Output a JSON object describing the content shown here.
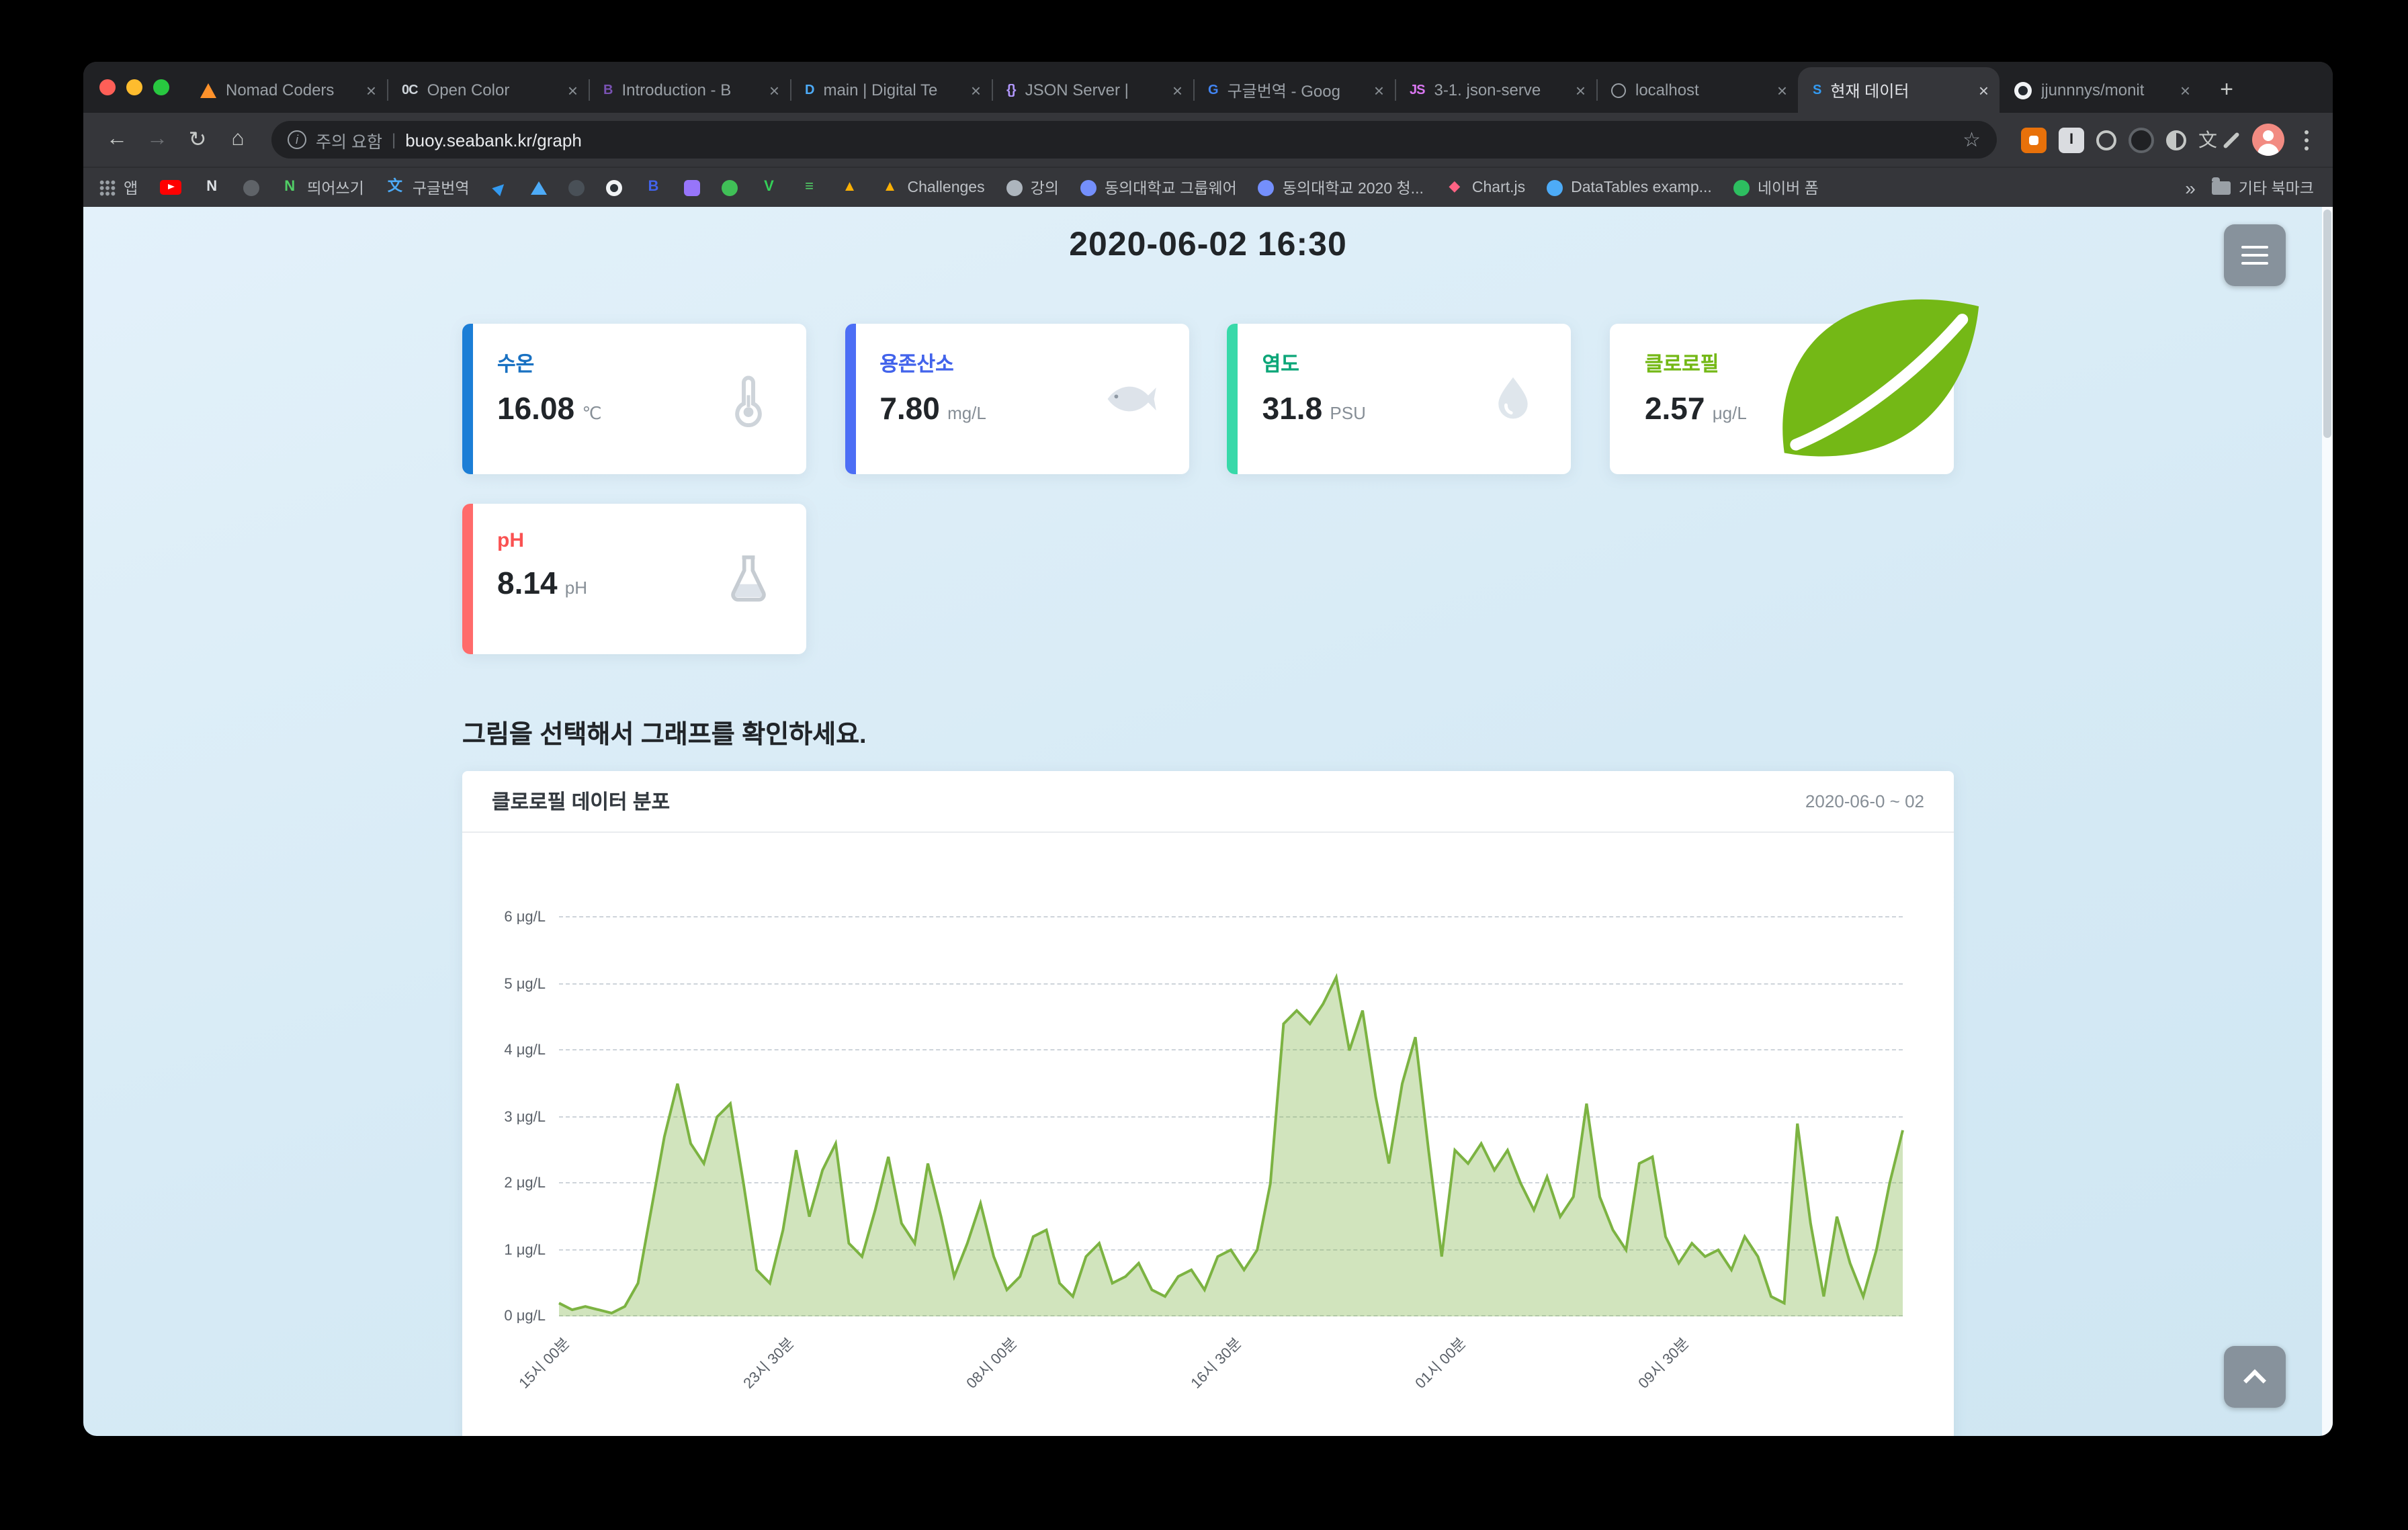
{
  "glyphs": {
    "back": "←",
    "forward": "→",
    "reload": "↻",
    "home": "⌂",
    "star": "☆",
    "plus": "+",
    "close": "×",
    "overflow": "»",
    "divider": "|",
    "info": "i",
    "translate": "文",
    "ext_badge": "I"
  },
  "window": {
    "tabs": [
      {
        "title": "Nomad Coders",
        "fav": {
          "kind": "tri",
          "color": "#ff922b"
        }
      },
      {
        "title": "Open Color",
        "fav": {
          "kind": "letter",
          "text": "0C",
          "color": "#ced4da"
        }
      },
      {
        "title": "Introduction - B",
        "fav": {
          "kind": "letter",
          "text": "B",
          "color": "#7952b3"
        }
      },
      {
        "title": "main | Digital Te",
        "fav": {
          "kind": "letter",
          "text": "D",
          "color": "#4dabf7"
        }
      },
      {
        "title": "JSON Server |",
        "fav": {
          "kind": "letter",
          "text": "{}",
          "color": "#b197fc"
        }
      },
      {
        "title": "구글번역 - Goog",
        "fav": {
          "kind": "letter",
          "text": "G",
          "color": "#4285f4"
        }
      },
      {
        "title": "3-1. json-serve",
        "fav": {
          "kind": "letter",
          "text": "JS",
          "color": "#da77f2"
        }
      },
      {
        "title": "localhost",
        "fav": {
          "kind": "globe",
          "color": "#9aa0a6"
        }
      },
      {
        "title": "현재 데이터",
        "fav": {
          "kind": "letter",
          "text": "S",
          "color": "#339af0"
        },
        "active": true
      },
      {
        "title": "jjunnnys/monit",
        "fav": {
          "kind": "gh",
          "color": "#f1f3f5"
        }
      }
    ],
    "address": {
      "warning": "주의 요함",
      "url": "buoy.seabank.kr/graph"
    },
    "bookmarks": [
      {
        "name": "apps-grid-icon",
        "kind": "grid",
        "color": "#9aa0a6",
        "label": "앱"
      },
      {
        "name": "youtube-icon",
        "kind": "play",
        "color": "#ff0000",
        "label": ""
      },
      {
        "name": "letter-n-dark-icon",
        "kind": "glyph",
        "text": "N",
        "color": "#dee2e6",
        "label": ""
      },
      {
        "name": "dark-circle-icon",
        "kind": "dot",
        "color": "#5f6368",
        "label": ""
      },
      {
        "name": "naver-n-icon",
        "kind": "glyph",
        "text": "N",
        "color": "#51cf66",
        "label": "띄어쓰기"
      },
      {
        "name": "translate-icon",
        "kind": "glyph",
        "text": "文",
        "color": "#4dabf7",
        "label": "구글번역"
      },
      {
        "name": "send-icon",
        "kind": "glyph",
        "text": "▶",
        "color": "#339af0",
        "label": ""
      },
      {
        "name": "triangle-icon",
        "kind": "tri",
        "color": "#4dabf7",
        "label": ""
      },
      {
        "name": "dark-circle-icon",
        "kind": "dot",
        "color": "#495057",
        "label": ""
      },
      {
        "name": "github-icon",
        "kind": "gh",
        "color": "#f1f3f5",
        "label": ""
      },
      {
        "name": "letter-b-icon",
        "kind": "glyph",
        "text": "B",
        "color": "#4263eb",
        "label": ""
      },
      {
        "name": "purple-square-icon",
        "kind": "sq",
        "color": "#9775fa",
        "label": ""
      },
      {
        "name": "green-circle-icon",
        "kind": "dot",
        "color": "#40c057",
        "label": ""
      },
      {
        "name": "letter-v-icon",
        "kind": "glyph",
        "text": "V",
        "color": "#34d058",
        "label": ""
      },
      {
        "name": "list-lines-icon",
        "kind": "glyph",
        "text": "≡",
        "color": "#51cf66",
        "label": ""
      },
      {
        "name": "warning-icon",
        "kind": "glyph",
        "text": "▲",
        "color": "#fab005",
        "label": ""
      },
      {
        "name": "warning-icon",
        "kind": "glyph",
        "text": "▲",
        "color": "#fab005",
        "label": "Challenges"
      },
      {
        "name": "globe-icon",
        "kind": "dot",
        "color": "#adb5bd",
        "label": "강의"
      },
      {
        "name": "globe-icon",
        "kind": "dot",
        "color": "#748ffc",
        "label": "동의대학교 그룹웨어"
      },
      {
        "name": "globe-icon",
        "kind": "dot",
        "color": "#748ffc",
        "label": "동의대학교 2020 청..."
      },
      {
        "name": "chartjs-icon",
        "kind": "glyph",
        "text": "◆",
        "color": "#ff6384",
        "label": "Chart.js"
      },
      {
        "name": "datatables-icon",
        "kind": "dot",
        "color": "#4dabf7",
        "label": "DataTables examp..."
      },
      {
        "name": "naver-form-icon",
        "kind": "dot",
        "color": "#2dbe60",
        "label": "네이버 폼"
      }
    ],
    "other_bookmarks": "기타 북마크"
  },
  "page": {
    "datetime": "2020-06-02 16:30",
    "instruction": "그림을 선택해서 그래프를 확인하세요.",
    "cards": [
      {
        "id": "water-temp",
        "label": "수온",
        "value": "16.08",
        "unit": "℃",
        "label_color": "#1971c2",
        "accent": "#1c7ed6",
        "icon": "thermometer"
      },
      {
        "id": "dissolved-oxygen",
        "label": "용존산소",
        "value": "7.80",
        "unit": "mg/L",
        "label_color": "#4263eb",
        "accent": "#4c6ef5",
        "icon": "fish"
      },
      {
        "id": "salinity",
        "label": "염도",
        "value": "31.8",
        "unit": "PSU",
        "label_color": "#0ca678",
        "accent": "#38d9a9",
        "icon": "droplet"
      },
      {
        "id": "chlorophyll",
        "label": "클로로필",
        "value": "2.57",
        "unit": "μg/L",
        "label_color": "#74b816",
        "accent": null,
        "icon": "leaf"
      },
      {
        "id": "ph",
        "label": "pH",
        "value": "8.14",
        "unit": "pH",
        "label_color": "#fa5252",
        "accent": "#ff6b6b",
        "icon": "flask"
      }
    ]
  },
  "chart_data": {
    "type": "area",
    "title": "클로로필 데이터 분포",
    "date_range": "2020-06-0 ~ 02",
    "series_name": "클로로필",
    "unit": "μg/L",
    "ylim": [
      0,
      6
    ],
    "grid": true,
    "legend": false,
    "y_ticks": [
      "0 μg/L",
      "1 μg/L",
      "2 μg/L",
      "3 μg/L",
      "4 μg/L",
      "5 μg/L",
      "6 μg/L"
    ],
    "x_tick_labels": [
      "15시 00분",
      "23시 30분",
      "08시 00분",
      "16시 30분",
      "01시 00분",
      "09시 30분"
    ],
    "x_tick_indices": [
      0,
      17,
      34,
      51,
      68,
      85
    ],
    "values": [
      0.2,
      0.1,
      0.15,
      0.1,
      0.05,
      0.15,
      0.5,
      1.6,
      2.7,
      3.5,
      2.6,
      2.3,
      3.0,
      3.2,
      2.0,
      0.7,
      0.5,
      1.3,
      2.5,
      1.5,
      2.2,
      2.6,
      1.1,
      0.9,
      1.6,
      2.4,
      1.4,
      1.1,
      2.3,
      1.5,
      0.6,
      1.1,
      1.7,
      0.9,
      0.4,
      0.6,
      1.2,
      1.3,
      0.5,
      0.3,
      0.9,
      1.1,
      0.5,
      0.6,
      0.8,
      0.4,
      0.3,
      0.6,
      0.7,
      0.4,
      0.9,
      1.0,
      0.7,
      1.0,
      2.0,
      4.4,
      4.6,
      4.4,
      4.7,
      5.1,
      4.0,
      4.6,
      3.3,
      2.3,
      3.5,
      4.2,
      2.5,
      0.9,
      2.5,
      2.3,
      2.6,
      2.2,
      2.5,
      2.0,
      1.6,
      2.1,
      1.5,
      1.8,
      3.2,
      1.8,
      1.3,
      1.0,
      2.3,
      2.4,
      1.2,
      0.8,
      1.1,
      0.9,
      1.0,
      0.7,
      1.2,
      0.9,
      0.3,
      0.2,
      2.9,
      1.4,
      0.3,
      1.5,
      0.8,
      0.3,
      1.0,
      2.0,
      2.8
    ],
    "line_color": "#7cb342",
    "fill_color": "rgba(124,179,66,0.35)",
    "grid_color": "#ced4da"
  }
}
